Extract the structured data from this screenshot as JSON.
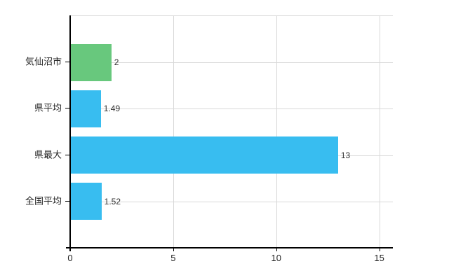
{
  "chart_data": {
    "type": "bar",
    "orientation": "horizontal",
    "title": "",
    "xlabel": "",
    "ylabel": "",
    "categories": [
      "気仙沼市",
      "県平均",
      "県最大",
      "全国平均"
    ],
    "values": [
      2,
      1.49,
      13,
      1.52
    ],
    "value_labels": [
      "2",
      "1.49",
      "13",
      "1.52"
    ],
    "bar_colors": [
      "#68c87d",
      "#38bdf0",
      "#38bdf0",
      "#38bdf0"
    ],
    "x_ticks": [
      0,
      5,
      10,
      15
    ],
    "x_tick_labels": [
      "0",
      "5",
      "10",
      "15"
    ],
    "xlim": [
      0,
      15.66
    ],
    "grid": true,
    "legend": false
  },
  "colors": {
    "highlight_bar": "#68c87d",
    "default_bar": "#38bdf0",
    "gridline": "#d9d9d9",
    "axis": "#000000",
    "label_text": "#222222",
    "value_text": "#333333",
    "background": "#ffffff"
  }
}
